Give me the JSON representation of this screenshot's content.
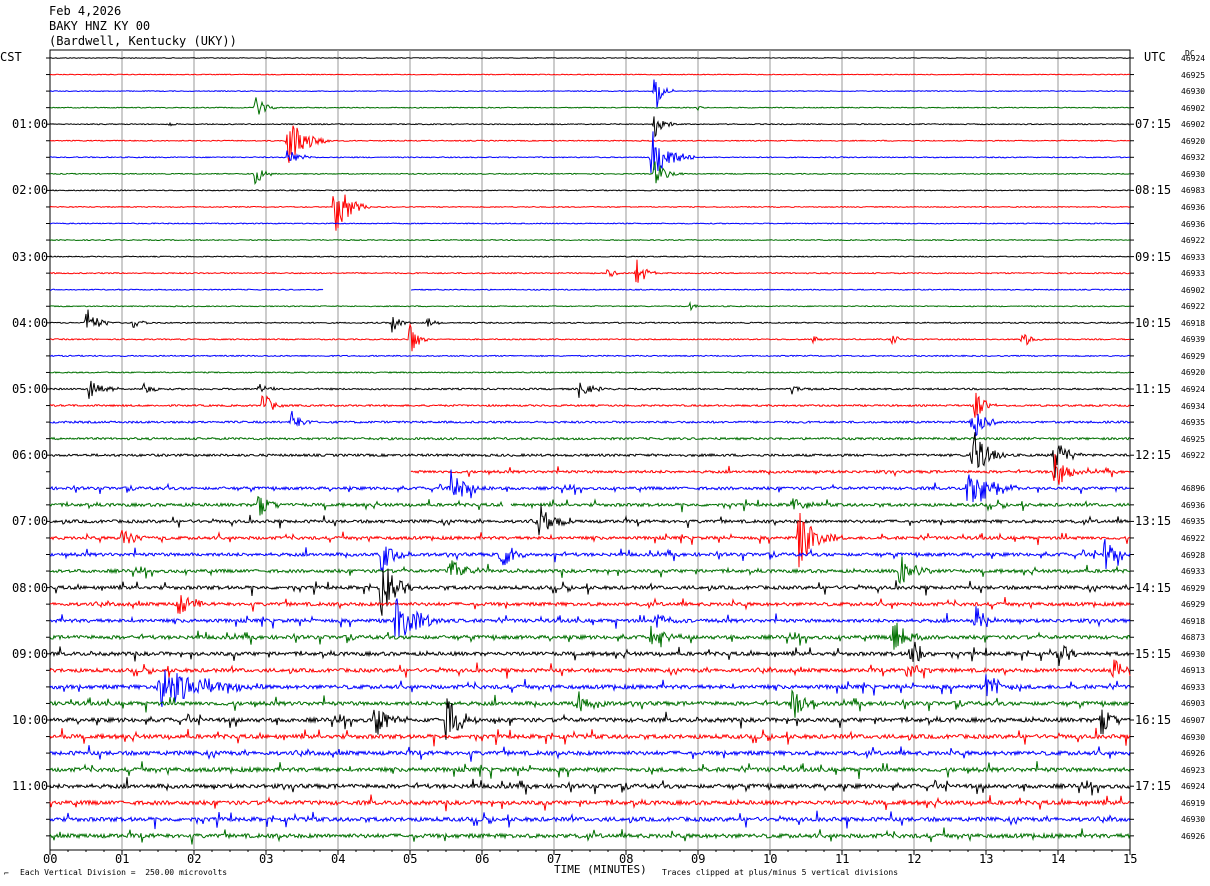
{
  "header": {
    "date": "Feb 4,2026",
    "station": "BAKY HNZ KY 00",
    "location": "(Bardwell, Kentucky (UKY))"
  },
  "left_tz": "CST",
  "right_tz": "UTC",
  "dc_label": "DC",
  "footer": {
    "scale": "Each Vertical Division =  250.00 microvolts",
    "xlabel": "TIME (MINUTES)",
    "clip": "Traces clipped at plus/minus 5 vertical divisions"
  },
  "colors": [
    "#000000",
    "#ff0000",
    "#0000ff",
    "#007000"
  ],
  "chart_data": {
    "type": "line",
    "xlabel": "TIME (MINUTES)",
    "xlim": [
      0,
      15
    ],
    "x_ticks": [
      "00",
      "01",
      "02",
      "03",
      "04",
      "05",
      "06",
      "07",
      "08",
      "09",
      "10",
      "11",
      "12",
      "13",
      "14",
      "15"
    ],
    "rows_per_hour": 4,
    "left_hour_labels": [
      "01:00",
      "02:00",
      "03:00",
      "04:00",
      "05:00",
      "06:00",
      "07:00",
      "08:00",
      "09:00",
      "10:00",
      "11:00"
    ],
    "right_hour_labels": [
      "07:15",
      "08:15",
      "09:15",
      "10:15",
      "11:15",
      "12:15",
      "13:15",
      "14:15",
      "15:15",
      "16:15",
      "17:15"
    ],
    "dc_values": [
      "46924",
      "46925",
      "46930",
      "46902",
      "46902",
      "46920",
      "46932",
      "46930",
      "46983",
      "46936",
      "46936",
      "46922",
      "46933",
      "46933",
      "46902",
      "46922",
      "46918",
      "46939",
      "46929",
      "46920",
      "46924",
      "46934",
      "46935",
      "46925",
      "46922",
      "",
      "46896",
      "46936",
      "46935",
      "46922",
      "46928",
      "46933",
      "46929",
      "46929",
      "46918",
      "46873",
      "46930",
      "46913",
      "46933",
      "46903",
      "46907",
      "46930",
      "46926",
      "46923",
      "46924",
      "46919",
      "46930",
      "46926"
    ],
    "noise_level": [
      0.8,
      0.8,
      0.8,
      0.9,
      1.0,
      1.0,
      1.0,
      1.0,
      1.0,
      1.0,
      1.0,
      1.0,
      1.0,
      1.2,
      1.0,
      1.0,
      1.2,
      1.2,
      1.2,
      1.2,
      1.6,
      1.8,
      2.0,
      2.2,
      2.4,
      2.6,
      2.8,
      3.0,
      3.0,
      3.0,
      3.2,
      3.2,
      3.4,
      3.4,
      3.4,
      3.6,
      3.6,
      3.6,
      3.8,
      3.8,
      4.0,
      4.0,
      4.0,
      4.0,
      4.0,
      4.0,
      4.0,
      4.0
    ],
    "gaps": [
      [
        14,
        [
          3.8,
          5.0
        ]
      ],
      [
        14,
        [
          10.6,
          10.6
        ]
      ],
      [
        25,
        [
          0,
          5.0
        ]
      ],
      [
        27,
        [
          6.3,
          6.4
        ]
      ]
    ],
    "events": [
      [
        4,
        1.65,
        4,
        0.12
      ],
      [
        3,
        2.85,
        14,
        0.3
      ],
      [
        5,
        3.3,
        28,
        0.6
      ],
      [
        6,
        3.3,
        10,
        0.4
      ],
      [
        7,
        2.85,
        12,
        0.3
      ],
      [
        3,
        9.0,
        3,
        0.1
      ],
      [
        2,
        8.4,
        22,
        0.3
      ],
      [
        4,
        8.4,
        14,
        0.3
      ],
      [
        6,
        8.35,
        30,
        0.6
      ],
      [
        7,
        8.4,
        14,
        0.4
      ],
      [
        9,
        3.95,
        30,
        0.5
      ],
      [
        13,
        7.75,
        8,
        0.2
      ],
      [
        13,
        8.15,
        16,
        0.3
      ],
      [
        15,
        8.9,
        5,
        0.15
      ],
      [
        16,
        0.5,
        16,
        0.4
      ],
      [
        16,
        1.15,
        7,
        0.3
      ],
      [
        16,
        4.75,
        10,
        0.3
      ],
      [
        16,
        5.25,
        6,
        0.25
      ],
      [
        17,
        5.0,
        22,
        0.25
      ],
      [
        17,
        10.6,
        5,
        0.2
      ],
      [
        17,
        11.7,
        6,
        0.2
      ],
      [
        17,
        13.5,
        10,
        0.3
      ],
      [
        20,
        0.55,
        14,
        0.4
      ],
      [
        20,
        1.3,
        7,
        0.3
      ],
      [
        20,
        2.9,
        7,
        0.3
      ],
      [
        20,
        7.35,
        10,
        0.4
      ],
      [
        20,
        10.3,
        6,
        0.3
      ],
      [
        21,
        2.95,
        16,
        0.3
      ],
      [
        21,
        12.85,
        18,
        0.3
      ],
      [
        22,
        3.35,
        16,
        0.3
      ],
      [
        22,
        12.8,
        24,
        0.4
      ],
      [
        24,
        12.8,
        30,
        0.5
      ],
      [
        24,
        13.95,
        24,
        0.4
      ],
      [
        25,
        13.95,
        24,
        0.4
      ],
      [
        26,
        5.55,
        20,
        0.6
      ],
      [
        26,
        12.75,
        30,
        0.7
      ],
      [
        27,
        2.9,
        14,
        0.4
      ],
      [
        27,
        10.3,
        10,
        0.4
      ],
      [
        28,
        6.8,
        18,
        0.5
      ],
      [
        29,
        1.0,
        12,
        0.4
      ],
      [
        29,
        10.4,
        30,
        0.6
      ],
      [
        30,
        4.6,
        22,
        0.4
      ],
      [
        30,
        6.25,
        20,
        0.4
      ],
      [
        30,
        14.65,
        20,
        0.4
      ],
      [
        31,
        5.55,
        16,
        0.5
      ],
      [
        31,
        11.8,
        20,
        0.5
      ],
      [
        32,
        4.6,
        30,
        0.5
      ],
      [
        33,
        1.75,
        16,
        0.5
      ],
      [
        34,
        4.8,
        30,
        0.7
      ],
      [
        34,
        8.4,
        12,
        0.5
      ],
      [
        34,
        12.85,
        16,
        0.4
      ],
      [
        35,
        8.35,
        14,
        0.5
      ],
      [
        35,
        11.7,
        20,
        0.5
      ],
      [
        36,
        11.95,
        20,
        0.4
      ],
      [
        36,
        14.0,
        14,
        0.4
      ],
      [
        37,
        11.9,
        12,
        0.4
      ],
      [
        37,
        14.75,
        14,
        0.4
      ],
      [
        38,
        1.5,
        26,
        1.5
      ],
      [
        38,
        13.0,
        20,
        0.4
      ],
      [
        39,
        7.3,
        16,
        0.5
      ],
      [
        39,
        10.3,
        24,
        0.4
      ],
      [
        40,
        4.5,
        20,
        0.5
      ],
      [
        40,
        5.5,
        30,
        0.5
      ],
      [
        40,
        14.6,
        18,
        0.4
      ]
    ],
    "grid": true
  }
}
